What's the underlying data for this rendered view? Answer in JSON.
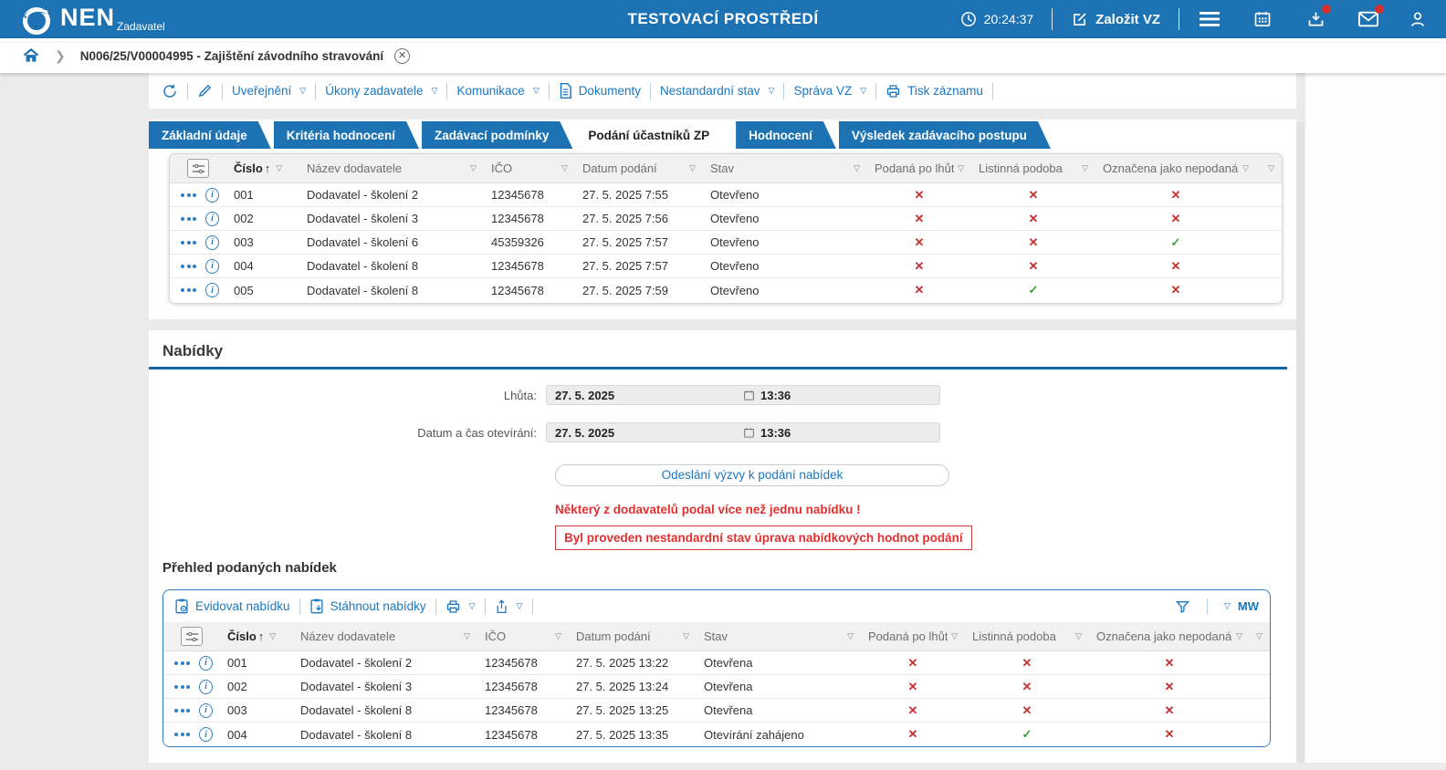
{
  "topbar": {
    "brand": "NEN",
    "brand_sub": "Zadavatel",
    "env_title": "TESTOVACÍ PROSTŘEDÍ",
    "time": "20:24:37",
    "create_vz": "Založit VZ"
  },
  "breadcrumb": {
    "path": "N006/25/V00004995 - Zajištění závodního stravování"
  },
  "toolbar": {
    "items": [
      {
        "label": "Uveřejnění",
        "dropdown": true,
        "icon": null
      },
      {
        "label": "Úkony zadavatele",
        "dropdown": true,
        "icon": null
      },
      {
        "label": "Komunikace",
        "dropdown": true,
        "icon": null
      },
      {
        "label": "Dokumenty",
        "dropdown": false,
        "icon": "document"
      },
      {
        "label": "Nestandardní stav",
        "dropdown": true,
        "icon": null
      },
      {
        "label": "Správa VZ",
        "dropdown": true,
        "icon": null
      },
      {
        "label": "Tisk záznamu",
        "dropdown": false,
        "icon": "printer"
      }
    ]
  },
  "tabs": [
    {
      "label": "Základní údaje",
      "active": false
    },
    {
      "label": "Kritéria hodnocení",
      "active": false
    },
    {
      "label": "Zadávací podmínky",
      "active": false
    },
    {
      "label": "Podání účastníků ZP",
      "active": true
    },
    {
      "label": "Hodnocení",
      "active": false
    },
    {
      "label": "Výsledek zadávacího postupu",
      "active": false
    }
  ],
  "columns": [
    "Číslo",
    "Název dodavatele",
    "IČO",
    "Datum podání",
    "Stav",
    "Podaná po lhůtě",
    "Listinná podoba",
    "Označena jako nepodaná"
  ],
  "sort": {
    "column": "Číslo",
    "direction": "asc",
    "arrow": "↑"
  },
  "symbols": {
    "cross": "✕",
    "check": "✓",
    "filter": "▽"
  },
  "participants": {
    "rows": [
      {
        "cislo": "001",
        "nazev": "Dodavatel - školení 2",
        "ico": "12345678",
        "datum": "27. 5. 2025 7:55",
        "stav": "Otevřeno",
        "podana_po_lhute": false,
        "listinna_podoba": false,
        "oznacena_nepodana": false
      },
      {
        "cislo": "002",
        "nazev": "Dodavatel - školení 3",
        "ico": "12345678",
        "datum": "27. 5. 2025 7:56",
        "stav": "Otevřeno",
        "podana_po_lhute": false,
        "listinna_podoba": false,
        "oznacena_nepodana": false
      },
      {
        "cislo": "003",
        "nazev": "Dodavatel - školení 6",
        "ico": "45359326",
        "datum": "27. 5. 2025 7:57",
        "stav": "Otevřeno",
        "podana_po_lhute": false,
        "listinna_podoba": false,
        "oznacena_nepodana": true
      },
      {
        "cislo": "004",
        "nazev": "Dodavatel - školení 8",
        "ico": "12345678",
        "datum": "27. 5. 2025 7:57",
        "stav": "Otevřeno",
        "podana_po_lhute": false,
        "listinna_podoba": false,
        "oznacena_nepodana": false
      },
      {
        "cislo": "005",
        "nazev": "Dodavatel - školení 8",
        "ico": "12345678",
        "datum": "27. 5. 2025 7:59",
        "stav": "Otevřeno",
        "podana_po_lhute": false,
        "listinna_podoba": true,
        "oznacena_nepodana": false
      }
    ]
  },
  "nabidky": {
    "heading": "Nabídky",
    "lhuta_label": "Lhůta:",
    "lhuta_date": "27. 5. 2025",
    "lhuta_time": "13:36",
    "oteviranie_label": "Datum a čas otevírání:",
    "oteviranie_date": "27. 5. 2025",
    "oteviranie_time": "13:36",
    "send_button": "Odeslání výzvy k podání nabídek",
    "warning1": "Některý z dodavatelů podal více než jednu nabídku !",
    "warning2": "Byl proveden nestandardní stav úprava nabídkových hodnot podání"
  },
  "offers": {
    "heading": "Přehled podaných nabídek",
    "actions": [
      {
        "label": "Evidovat nabídku",
        "icon": "clipboard-gear"
      },
      {
        "label": "Stáhnout nabídky",
        "icon": "clipboard-download"
      }
    ],
    "mw_label": "MW",
    "rows": [
      {
        "cislo": "001",
        "nazev": "Dodavatel - školení 2",
        "ico": "12345678",
        "datum": "27. 5. 2025 13:22",
        "stav": "Otevřena",
        "podana_po_lhute": false,
        "listinna_podoba": false,
        "oznacena_nepodana": false
      },
      {
        "cislo": "002",
        "nazev": "Dodavatel - školení 3",
        "ico": "12345678",
        "datum": "27. 5. 2025 13:24",
        "stav": "Otevřena",
        "podana_po_lhute": false,
        "listinna_podoba": false,
        "oznacena_nepodana": false
      },
      {
        "cislo": "003",
        "nazev": "Dodavatel - školení 8",
        "ico": "12345678",
        "datum": "27. 5. 2025 13:25",
        "stav": "Otevřena",
        "podana_po_lhute": false,
        "listinna_podoba": false,
        "oznacena_nepodana": false
      },
      {
        "cislo": "004",
        "nazev": "Dodavatel - školení 8",
        "ico": "12345678",
        "datum": "27. 5. 2025 13:35",
        "stav": "Otevírání zahájeno",
        "podana_po_lhute": false,
        "listinna_podoba": true,
        "oznacena_nepodana": false
      }
    ]
  }
}
